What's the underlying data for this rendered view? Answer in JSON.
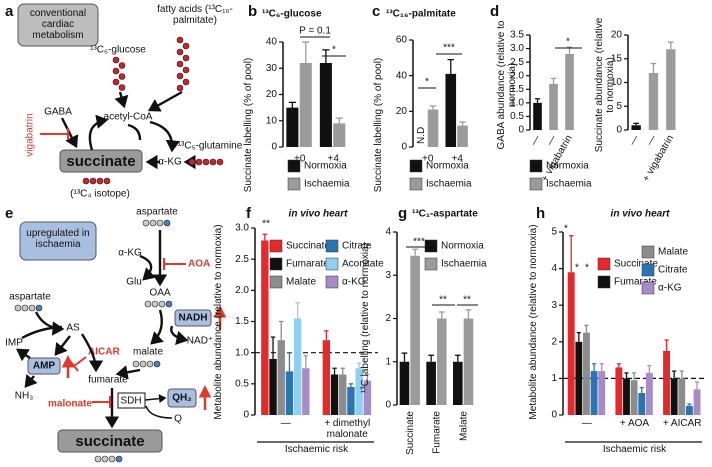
{
  "panel_a": {
    "letter": "a",
    "box": "conventional cardiac metabolism",
    "glucose": "¹³C₆-glucose",
    "fatty_acids": "fatty acids (¹³C₁₆-palmitate)",
    "acetyl_coa": "acetyl-CoA",
    "gaba": "GABA",
    "vigabatrin": "vigabatrin",
    "succinate": "succinate",
    "akg": "α-KG",
    "glutamine": "¹³C₅-glutamine",
    "isotope": "(¹³C₄ isotope)"
  },
  "panel_e": {
    "letter": "e",
    "box": "upregulated in ischaemia",
    "aspartate_top": "aspartate",
    "akg": "α-KG",
    "aoa": "AOA",
    "glu": "Glu",
    "oaa": "OAA",
    "nadh": "NADH",
    "nad": "NAD⁺",
    "malate": "malate",
    "aspartate_left": "aspartate",
    "as": "AS",
    "imp": "IMP",
    "aicar": "AICAR",
    "amp": "AMP",
    "nh3": "NH₃",
    "fumarate": "fumarate",
    "sdh": "SDH",
    "malonate": "malonate",
    "qh2": "QH₂",
    "q": "Q",
    "succinate": "succinate"
  },
  "chart_data": [
    {
      "type": "bar",
      "letter": "b",
      "title": "¹³C₆-glucose",
      "y_label": "Succinate labelling (% of pool)",
      "categories": [
        "+0",
        "+4"
      ],
      "series": [
        {
          "name": "Normoxia",
          "color": "#111111",
          "values": [
            15,
            32
          ],
          "errors": [
            2,
            5
          ]
        },
        {
          "name": "Ischaemia",
          "color": "#9b9b9b",
          "values": [
            32,
            9
          ],
          "errors": [
            8,
            2
          ]
        }
      ],
      "ylim": [
        0,
        40
      ],
      "yticks": [
        0,
        10,
        20,
        30,
        40
      ],
      "annotations": [
        "P = 0.1",
        "*"
      ]
    },
    {
      "type": "bar",
      "letter": "c",
      "title": "¹³C₁₆-palmitate",
      "y_label": "Succinate labelling (% of pool)",
      "categories": [
        "+0",
        "+4"
      ],
      "series": [
        {
          "name": "Normoxia",
          "color": "#111111",
          "values": [
            null,
            41
          ],
          "errors": [
            null,
            8
          ],
          "value_labels": [
            "N.D",
            null
          ]
        },
        {
          "name": "Ischaemia",
          "color": "#9b9b9b",
          "values": [
            21,
            12
          ],
          "errors": [
            2,
            2
          ]
        }
      ],
      "ylim": [
        0,
        60
      ],
      "yticks": [
        0,
        20,
        40,
        60
      ],
      "annotations": [
        "*",
        "***"
      ]
    },
    {
      "type": "bar",
      "letter": "d",
      "y_label": "GABA abundance (relative to normoxia)",
      "categories": [
        "—",
        "—",
        "+ vigabatrin"
      ],
      "series": [
        {
          "name": "Normoxia",
          "color": "#111111",
          "values": [
            1,
            null,
            null
          ],
          "errors": [
            0.15,
            null,
            null
          ]
        },
        {
          "name": "Ischaemia",
          "color": "#9b9b9b",
          "values": [
            null,
            1.7,
            2.8
          ],
          "errors": [
            null,
            0.2,
            0.25
          ]
        }
      ],
      "ylim": [
        0,
        3.5
      ],
      "yticks": [
        0,
        0.5,
        {
          "value": 1,
          "label": "1.0"
        },
        1.5,
        {
          "value": 2,
          "label": "2.0"
        },
        2.5,
        {
          "value": 3,
          "label": "3.0"
        },
        3.5
      ],
      "annotations": [
        "*"
      ]
    },
    {
      "type": "bar",
      "y_label": "Succinate abundance (relative to normoxia)",
      "categories": [
        "—",
        "—",
        "+ vigabatrin"
      ],
      "series": [
        {
          "color": "#111111",
          "values": [
            1,
            null,
            null
          ],
          "errors": [
            0.4,
            null,
            null
          ]
        },
        {
          "color": "#9b9b9b",
          "values": [
            null,
            12,
            17
          ],
          "errors": [
            null,
            2,
            1.5
          ]
        }
      ],
      "ylim": [
        0,
        20
      ],
      "yticks": [
        0,
        5,
        10,
        15,
        20
      ]
    },
    {
      "type": "bar",
      "letter": "f",
      "title": "in vivo heart",
      "y_label": "Metabolite abundance (relative to normoxia)",
      "x_label": "Ischaemic risk",
      "categories": [
        "—",
        "+ dimethyl malonate"
      ],
      "series": [
        {
          "name": "Succinate",
          "color": "#e8272a",
          "values": [
            2.8,
            1.2
          ],
          "errors": [
            0.1,
            0.15
          ]
        },
        {
          "name": "Fumarate",
          "color": "#111111",
          "values": [
            0.9,
            0.65
          ],
          "errors": [
            0.35,
            0.1
          ]
        },
        {
          "name": "Malate",
          "color": "#8c8c8c",
          "values": [
            1.2,
            0.65
          ],
          "errors": [
            0.3,
            0.1
          ]
        },
        {
          "name": "Citrate",
          "color": "#2b74b3",
          "values": [
            0.7,
            0.45
          ],
          "errors": [
            0.3,
            0.05
          ]
        },
        {
          "name": "Aconitate",
          "color": "#8fd0f2",
          "values": [
            1.55,
            0.75
          ],
          "errors": [
            0.25,
            0.08
          ]
        },
        {
          "name": "α-KG",
          "color": "#a78bc9",
          "values": [
            0.75,
            0.55
          ],
          "errors": [
            0.2,
            0.1
          ]
        }
      ],
      "ylim": [
        0,
        3
      ],
      "yticks": [
        0,
        0.5,
        {
          "value": 1,
          "label": "1.0"
        },
        1.5,
        {
          "value": 2,
          "label": "2.0"
        },
        2.5,
        {
          "value": 3,
          "label": "3.0"
        }
      ],
      "hline": 1,
      "annotations": [
        "**"
      ]
    },
    {
      "type": "bar",
      "letter": "g",
      "title": "¹³C₁-aspartate",
      "y_label": "¹³C labelling (relative to normoxia)",
      "categories": [
        "Succinate",
        "Fumarate",
        "Malate"
      ],
      "series": [
        {
          "name": "Normoxia",
          "color": "#111111",
          "values": [
            1,
            1,
            1
          ],
          "errors": [
            0.2,
            0.15,
            0.15
          ]
        },
        {
          "name": "Ischaemia",
          "color": "#9b9b9b",
          "values": [
            3.45,
            2,
            2
          ],
          "errors": [
            0.15,
            0.15,
            0.2
          ]
        }
      ],
      "ylim": [
        0,
        4
      ],
      "yticks": [
        0,
        1,
        2,
        3,
        4
      ],
      "annotations": [
        "***",
        "**",
        "**"
      ]
    },
    {
      "type": "bar",
      "letter": "h",
      "title": "in vivo heart",
      "y_label": "Metabolite abundance (relative to normoxia)",
      "x_label": "Ischaemic risk",
      "categories": [
        "—",
        "+ AOA",
        "+ AICAR"
      ],
      "series": [
        {
          "name": "Succinate",
          "color": "#e8272a",
          "values": [
            3.9,
            1.3,
            1.75
          ],
          "errors": [
            1,
            0.1,
            0.3
          ]
        },
        {
          "name": "Fumarate",
          "color": "#111111",
          "values": [
            2,
            1,
            1
          ],
          "errors": [
            0.25,
            0.15,
            0.2
          ]
        },
        {
          "name": "Malate",
          "color": "#8c8c8c",
          "values": [
            2.25,
            0.95,
            1
          ],
          "errors": [
            0.2,
            0.2,
            0.2
          ]
        },
        {
          "name": "Citrate",
          "color": "#2b74b3",
          "values": [
            1.2,
            0.6,
            0.25
          ],
          "errors": [
            0.2,
            0.15,
            0.05
          ]
        },
        {
          "name": "α-KG",
          "color": "#a78bc9",
          "values": [
            1.2,
            1.15,
            0.7
          ],
          "errors": [
            0.2,
            0.2,
            0.2
          ]
        }
      ],
      "ylim": [
        0,
        5
      ],
      "yticks": [
        0,
        1,
        2,
        3,
        4,
        5
      ],
      "hline": 1,
      "annotations": [
        "*",
        "*",
        "*"
      ]
    }
  ]
}
